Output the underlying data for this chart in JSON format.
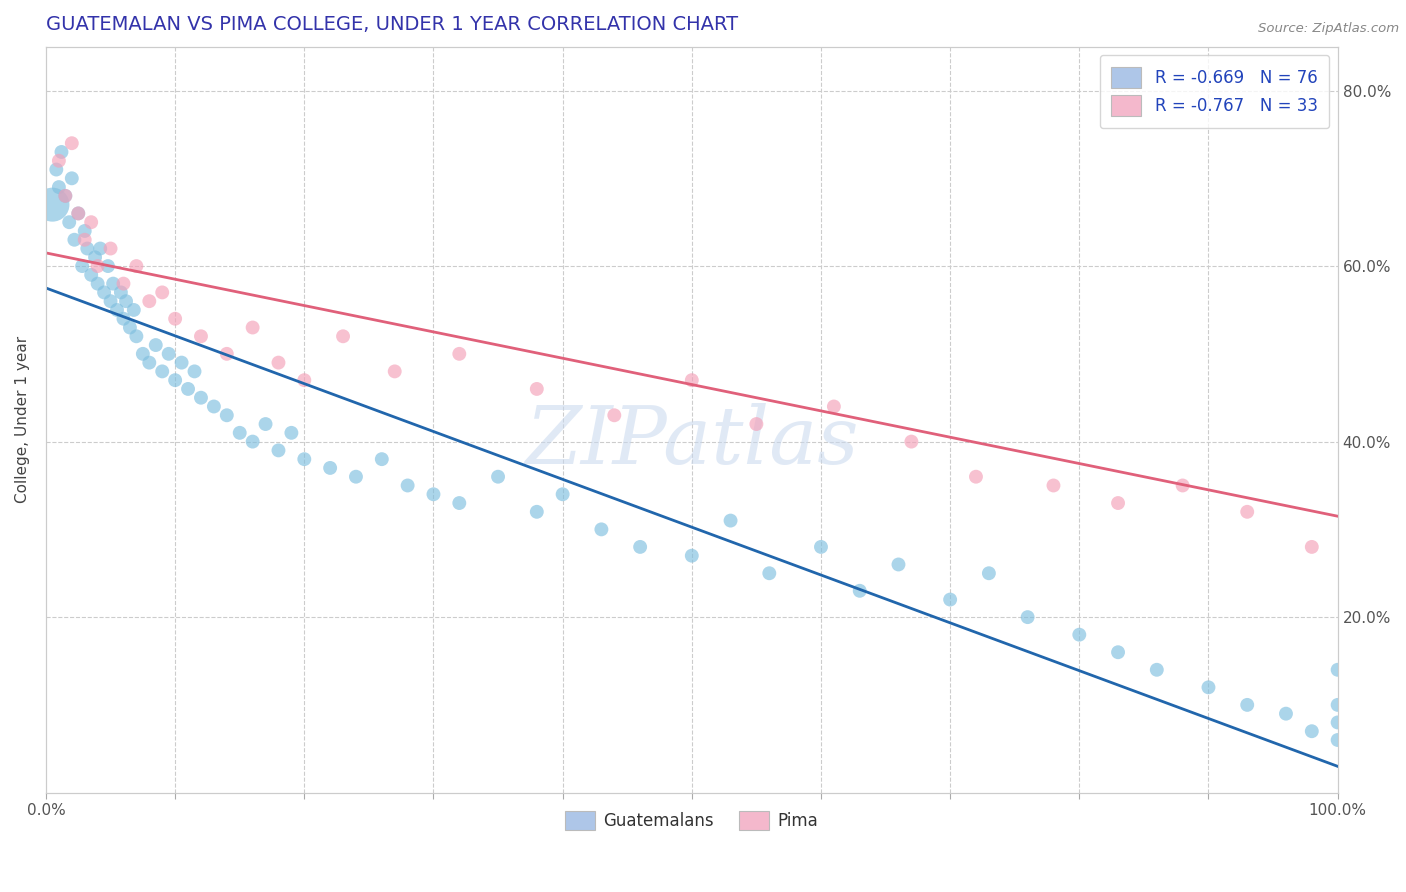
{
  "title": "GUATEMALAN VS PIMA COLLEGE, UNDER 1 YEAR CORRELATION CHART",
  "source_text": "Source: ZipAtlas.com",
  "ylabel": "College, Under 1 year",
  "xlim": [
    0.0,
    1.0
  ],
  "ylim": [
    0.0,
    0.85
  ],
  "xticks": [
    0.0,
    0.1,
    0.2,
    0.3,
    0.4,
    0.5,
    0.6,
    0.7,
    0.8,
    0.9,
    1.0
  ],
  "yticks": [
    0.0,
    0.2,
    0.4,
    0.6,
    0.8
  ],
  "xticklabels_shown": [
    "0.0%",
    "",
    "",
    "",
    "",
    "",
    "",
    "",
    "",
    "",
    "100.0%"
  ],
  "yticklabels_right": [
    "",
    "20.0%",
    "40.0%",
    "60.0%",
    "80.0%"
  ],
  "blue_color": "#7fbfdf",
  "pink_color": "#f4a0b8",
  "blue_line_color": "#2166ac",
  "pink_line_color": "#e0607a",
  "legend_blue_label": "R = -0.669   N = 76",
  "legend_pink_label": "R = -0.767   N = 33",
  "legend_blue_color": "#aec6e8",
  "legend_pink_color": "#f4b8cc",
  "guatemalans_label": "Guatemalans",
  "pima_label": "Pima",
  "blue_R": -0.669,
  "blue_N": 76,
  "pink_R": -0.767,
  "pink_N": 33,
  "blue_line_start_x": 0.0,
  "blue_line_start_y": 0.575,
  "blue_line_end_x": 1.0,
  "blue_line_end_y": 0.03,
  "pink_line_start_x": 0.0,
  "pink_line_start_y": 0.615,
  "pink_line_end_x": 1.0,
  "pink_line_end_y": 0.315,
  "blue_x": [
    0.005,
    0.008,
    0.01,
    0.012,
    0.015,
    0.018,
    0.02,
    0.022,
    0.025,
    0.028,
    0.03,
    0.032,
    0.035,
    0.038,
    0.04,
    0.042,
    0.045,
    0.048,
    0.05,
    0.052,
    0.055,
    0.058,
    0.06,
    0.062,
    0.065,
    0.068,
    0.07,
    0.075,
    0.08,
    0.085,
    0.09,
    0.095,
    0.1,
    0.105,
    0.11,
    0.115,
    0.12,
    0.13,
    0.14,
    0.15,
    0.16,
    0.17,
    0.18,
    0.19,
    0.2,
    0.22,
    0.24,
    0.26,
    0.28,
    0.3,
    0.32,
    0.35,
    0.38,
    0.4,
    0.43,
    0.46,
    0.5,
    0.53,
    0.56,
    0.6,
    0.63,
    0.66,
    0.7,
    0.73,
    0.76,
    0.8,
    0.83,
    0.86,
    0.9,
    0.93,
    0.96,
    0.98,
    1.0,
    1.0,
    1.0,
    1.0
  ],
  "blue_y": [
    0.67,
    0.71,
    0.69,
    0.73,
    0.68,
    0.65,
    0.7,
    0.63,
    0.66,
    0.6,
    0.64,
    0.62,
    0.59,
    0.61,
    0.58,
    0.62,
    0.57,
    0.6,
    0.56,
    0.58,
    0.55,
    0.57,
    0.54,
    0.56,
    0.53,
    0.55,
    0.52,
    0.5,
    0.49,
    0.51,
    0.48,
    0.5,
    0.47,
    0.49,
    0.46,
    0.48,
    0.45,
    0.44,
    0.43,
    0.41,
    0.4,
    0.42,
    0.39,
    0.41,
    0.38,
    0.37,
    0.36,
    0.38,
    0.35,
    0.34,
    0.33,
    0.36,
    0.32,
    0.34,
    0.3,
    0.28,
    0.27,
    0.31,
    0.25,
    0.28,
    0.23,
    0.26,
    0.22,
    0.25,
    0.2,
    0.18,
    0.16,
    0.14,
    0.12,
    0.1,
    0.09,
    0.07,
    0.06,
    0.14,
    0.1,
    0.08
  ],
  "blue_sizes": [
    600,
    100,
    100,
    100,
    100,
    100,
    100,
    100,
    100,
    100,
    100,
    100,
    100,
    100,
    100,
    100,
    100,
    100,
    100,
    100,
    100,
    100,
    100,
    100,
    100,
    100,
    100,
    100,
    100,
    100,
    100,
    100,
    100,
    100,
    100,
    100,
    100,
    100,
    100,
    100,
    100,
    100,
    100,
    100,
    100,
    100,
    100,
    100,
    100,
    100,
    100,
    100,
    100,
    100,
    100,
    100,
    100,
    100,
    100,
    100,
    100,
    100,
    100,
    100,
    100,
    100,
    100,
    100,
    100,
    100,
    100,
    100,
    100,
    100,
    100,
    100
  ],
  "pink_x": [
    0.01,
    0.015,
    0.02,
    0.025,
    0.03,
    0.035,
    0.04,
    0.05,
    0.06,
    0.07,
    0.08,
    0.09,
    0.1,
    0.12,
    0.14,
    0.16,
    0.18,
    0.2,
    0.23,
    0.27,
    0.32,
    0.38,
    0.44,
    0.5,
    0.55,
    0.61,
    0.67,
    0.72,
    0.78,
    0.83,
    0.88,
    0.93,
    0.98
  ],
  "pink_y": [
    0.72,
    0.68,
    0.74,
    0.66,
    0.63,
    0.65,
    0.6,
    0.62,
    0.58,
    0.6,
    0.56,
    0.57,
    0.54,
    0.52,
    0.5,
    0.53,
    0.49,
    0.47,
    0.52,
    0.48,
    0.5,
    0.46,
    0.43,
    0.47,
    0.42,
    0.44,
    0.4,
    0.36,
    0.35,
    0.33,
    0.35,
    0.32,
    0.28
  ],
  "pink_sizes": [
    100,
    100,
    100,
    100,
    100,
    100,
    100,
    100,
    100,
    100,
    100,
    100,
    100,
    100,
    100,
    100,
    100,
    100,
    100,
    100,
    100,
    100,
    100,
    100,
    100,
    100,
    100,
    100,
    100,
    100,
    100,
    100,
    100
  ]
}
